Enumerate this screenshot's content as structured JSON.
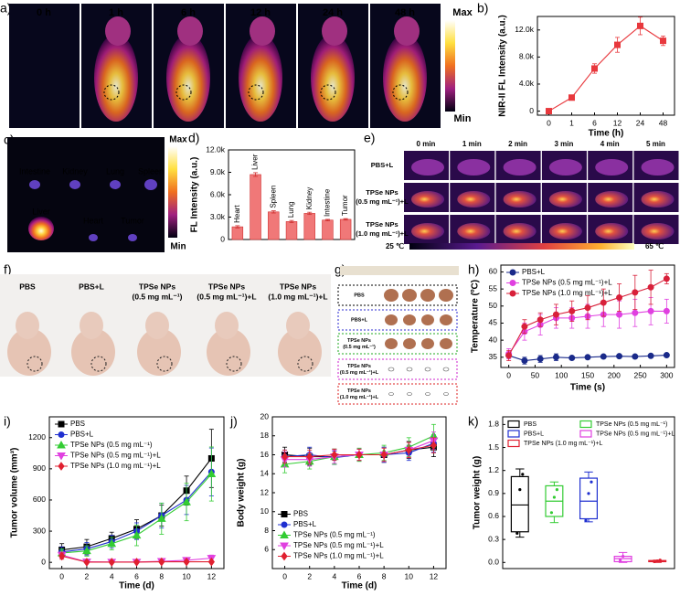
{
  "panels": {
    "a": {
      "label": "a)",
      "times": [
        "0 h",
        "1 h",
        "6 h",
        "12 h",
        "24 h",
        "48 h"
      ],
      "scale": [
        "Max",
        "Min"
      ]
    },
    "c": {
      "label": "c)",
      "organs": [
        "Intestine",
        "Kidney",
        "Lung",
        "Spleen",
        "Liver",
        "Heart",
        "Tumor"
      ],
      "scale": [
        "Max",
        "Min"
      ]
    },
    "e": {
      "label": "e)",
      "times": [
        "0 min",
        "1 min",
        "2 min",
        "3 min",
        "4 min",
        "5 min"
      ],
      "rows": [
        [
          "PBS+L"
        ],
        [
          "TPSe NPs",
          "(0.5 mg mL⁻¹)+L"
        ],
        [
          "TPSe NPs",
          "(1.0 mg mL⁻¹)+L"
        ]
      ],
      "scale": [
        "25 ℃",
        "65 ℃"
      ]
    },
    "f": {
      "label": "f)",
      "groups": [
        {
          "lines": [
            "PBS"
          ],
          "color": "#000000"
        },
        {
          "lines": [
            "PBS+L"
          ],
          "color": "#2a2ad0"
        },
        {
          "lines": [
            "TPSe NPs",
            "(0.5 mg mL⁻¹)"
          ],
          "color": "#22aa22"
        },
        {
          "lines": [
            "TPSe NPs",
            "(0.5 mg mL⁻¹)+L"
          ],
          "color": "#cc22cc"
        },
        {
          "lines": [
            "TPSe NPs",
            "(1.0 mg mL⁻¹)+L"
          ],
          "color": "#dd2222"
        }
      ]
    },
    "g": {
      "label": "g)",
      "rows": [
        {
          "lines": [
            "PBS"
          ],
          "color": "#000000"
        },
        {
          "lines": [
            "PBS+L"
          ],
          "color": "#2a2ad0"
        },
        {
          "lines": [
            "TPSe NPs",
            "(0.5 mg mL⁻¹)"
          ],
          "color": "#22aa22"
        },
        {
          "lines": [
            "TPSe NPs",
            "(0.5 mg mL⁻¹)+L"
          ],
          "color": "#cc22cc"
        },
        {
          "lines": [
            "TPSe NPs",
            "(1.0 mg mL⁻¹)+L"
          ],
          "color": "#dd2222"
        }
      ]
    }
  },
  "chart_data": [
    {
      "label": "b)",
      "type": "line",
      "categories": [
        "0",
        "1",
        "6",
        "12",
        "24",
        "48"
      ],
      "values": [
        0,
        2000,
        6300,
        9800,
        12600,
        10400
      ],
      "errors": [
        100,
        250,
        700,
        1100,
        1300,
        700
      ],
      "color": "#e8383d",
      "marker": "square",
      "ylim": [
        -600,
        14000
      ],
      "yticks": [
        0,
        {
          "value": 4000,
          "label": "4.0k"
        },
        {
          "value": 8000,
          "label": "8.0k"
        },
        {
          "value": 12000,
          "label": "12.0k"
        }
      ],
      "xlabel": "Time (h)",
      "ylabel": "NIR-II FL Intensity (a.u.)"
    },
    {
      "label": "d)",
      "type": "bar",
      "categories": [
        "Heart",
        "Liver",
        "Spleen",
        "Lung",
        "Kidney",
        "Intestine",
        "Tumor"
      ],
      "values": [
        1700,
        8700,
        3700,
        2400,
        3500,
        2600,
        2700
      ],
      "errors": [
        150,
        250,
        150,
        150,
        150,
        100,
        100
      ],
      "color": "#f07878",
      "ylim": [
        0,
        12000
      ],
      "yticks": [
        0,
        {
          "value": 3000,
          "label": "3.0k"
        },
        {
          "value": 6000,
          "label": "6.0k"
        },
        {
          "value": 9000,
          "label": "9.0k"
        },
        {
          "value": 12000,
          "label": "12.0k"
        }
      ],
      "ylabel": "FL Intensity (a.u.)"
    },
    {
      "label": "h)",
      "type": "line",
      "x": [
        0,
        30,
        60,
        90,
        120,
        150,
        180,
        210,
        240,
        270,
        300
      ],
      "xlim": [
        -15,
        315
      ],
      "xticks": [
        0,
        50,
        100,
        150,
        200,
        250,
        300
      ],
      "ylim": [
        32,
        62
      ],
      "yticks": [
        35,
        40,
        45,
        50,
        55,
        60
      ],
      "legend": "upper left",
      "xlabel": "Time (s)",
      "ylabel": "Temperature (ºC)",
      "series": [
        {
          "name": "PBS+L",
          "color": "#1a2a8a",
          "marker": "circle",
          "values": [
            35.5,
            34,
            34.5,
            35,
            34.8,
            35,
            35.2,
            35.3,
            35.2,
            35.4,
            35.6
          ],
          "errors": [
            0.5,
            1,
            1,
            1,
            0.3,
            0.3,
            0.3,
            0.3,
            0.3,
            0.3,
            0.3
          ]
        },
        {
          "name": "TPSe NPs (0.5 mg mL⁻¹)+L",
          "color": "#e040e0",
          "marker": "circle",
          "values": [
            36,
            42.5,
            44.5,
            46.5,
            46.5,
            47,
            47.5,
            47.5,
            48,
            48.5,
            48.5
          ],
          "errors": [
            1.5,
            2.5,
            3,
            3,
            3,
            3.5,
            3.5,
            4,
            4,
            4,
            3.5
          ]
        },
        {
          "name": "TPSe NPs (1.0 mg mL⁻¹)+L",
          "color": "#d8203a",
          "marker": "circle",
          "values": [
            35.5,
            44,
            46,
            47.5,
            48.5,
            49.5,
            51,
            52.5,
            54,
            55.5,
            58
          ],
          "errors": [
            1.5,
            2,
            2,
            3,
            3,
            3.5,
            4,
            4,
            5,
            5,
            1.5
          ]
        }
      ]
    },
    {
      "label": "i)",
      "type": "line",
      "x": [
        0,
        2,
        4,
        6,
        8,
        10,
        12
      ],
      "xlim": [
        -1,
        13
      ],
      "xticks": [
        0,
        2,
        4,
        6,
        8,
        10,
        12
      ],
      "ylim": [
        -60,
        1400
      ],
      "yticks": [
        0,
        300,
        600,
        900,
        1200
      ],
      "legend": "upper left",
      "xlabel": "Time (d)",
      "ylabel": "Tumor volume (mm³)",
      "series": [
        {
          "name": "PBS",
          "color": "#000000",
          "marker": "square",
          "values": [
            120,
            150,
            230,
            320,
            450,
            690,
            1000
          ],
          "errors": [
            60,
            70,
            60,
            90,
            100,
            140,
            280
          ]
        },
        {
          "name": "PBS+L",
          "color": "#2030d0",
          "marker": "circle",
          "values": [
            100,
            130,
            200,
            300,
            450,
            600,
            870
          ],
          "errors": [
            50,
            60,
            60,
            80,
            120,
            140,
            230
          ]
        },
        {
          "name": "TPSe NPs (0.5 mg mL⁻¹)",
          "color": "#33cc33",
          "marker": "triangle",
          "values": [
            90,
            110,
            180,
            260,
            420,
            580,
            850
          ],
          "errors": [
            40,
            50,
            60,
            100,
            150,
            180,
            260
          ]
        },
        {
          "name": "TPSe NPs (0.5 mg mL⁻¹)+L",
          "color": "#e040e0",
          "marker": "triangle-down",
          "values": [
            70,
            5,
            3,
            3,
            10,
            20,
            40
          ],
          "errors": [
            30,
            10,
            5,
            5,
            10,
            15,
            30
          ]
        },
        {
          "name": "TPSe NPs (1.0 mg mL⁻¹)+L",
          "color": "#e02030",
          "marker": "diamond",
          "values": [
            60,
            2,
            2,
            2,
            5,
            5,
            5
          ],
          "errors": [
            30,
            5,
            3,
            3,
            5,
            5,
            5
          ]
        }
      ]
    },
    {
      "label": "j)",
      "type": "line",
      "x": [
        0,
        2,
        4,
        6,
        8,
        10,
        12
      ],
      "xlim": [
        -1,
        13
      ],
      "xticks": [
        0,
        2,
        4,
        6,
        8,
        10,
        12
      ],
      "ylim": [
        4,
        20
      ],
      "yticks": [
        6,
        8,
        10,
        12,
        14,
        16,
        18,
        20
      ],
      "legend": "lower left",
      "xlabel": "Time (d)",
      "ylabel": "Body weight (g)",
      "series": [
        {
          "name": "PBS",
          "color": "#000000",
          "marker": "square",
          "values": [
            16,
            15.8,
            15.8,
            16,
            16,
            16.5,
            16.8
          ],
          "errors": [
            0.8,
            0.9,
            0.8,
            0.6,
            0.8,
            0.9,
            1.0
          ]
        },
        {
          "name": "PBS+L",
          "color": "#2030d0",
          "marker": "circle",
          "values": [
            15.8,
            16,
            15.7,
            16,
            16,
            16.2,
            17.2
          ],
          "errors": [
            0.7,
            0.8,
            0.7,
            0.6,
            0.8,
            0.8,
            0.9
          ]
        },
        {
          "name": "TPSe NPs (0.5 mg mL⁻¹)",
          "color": "#33cc33",
          "marker": "triangle",
          "values": [
            15,
            15.3,
            15.8,
            16,
            16.2,
            16.8,
            18
          ],
          "errors": [
            0.9,
            0.8,
            0.8,
            0.7,
            0.8,
            1.0,
            1.2
          ]
        },
        {
          "name": "TPSe NPs (0.5 mg mL⁻¹)+L",
          "color": "#e040e0",
          "marker": "triangle-down",
          "values": [
            15.5,
            15.5,
            15.8,
            16,
            16,
            16.5,
            17.5
          ],
          "errors": [
            0.8,
            0.7,
            0.7,
            0.6,
            0.7,
            0.8,
            0.9
          ]
        },
        {
          "name": "TPSe NPs (1.0 mg mL⁻¹)+L",
          "color": "#e02030",
          "marker": "diamond",
          "values": [
            15.8,
            15.8,
            16,
            16,
            16,
            16.5,
            17
          ],
          "errors": [
            0.7,
            0.7,
            0.6,
            0.6,
            0.7,
            0.8,
            0.8
          ]
        }
      ]
    },
    {
      "label": "k)",
      "type": "box",
      "ylim": [
        -0.08,
        1.9
      ],
      "yticks": [
        {
          "value": 0,
          "label": "0.0"
        },
        0.3,
        0.6,
        0.9,
        1.2,
        1.5,
        1.8
      ],
      "legend": "upper center",
      "ylabel": "Tumor weight (g)",
      "series": [
        {
          "name": "PBS",
          "color": "#000000",
          "min": 0.33,
          "q1": 0.4,
          "median": 0.75,
          "q3": 1.12,
          "max": 1.22,
          "points": [
            0.38,
            0.95,
            1.15
          ]
        },
        {
          "name": "TPSe NPs (0.5 mg mL⁻¹)",
          "color": "#33cc33",
          "min": 0.52,
          "q1": 0.6,
          "median": 0.8,
          "q3": 1.0,
          "max": 1.05,
          "points": [
            0.65,
            0.85,
            0.95
          ]
        },
        {
          "name": "PBS+L",
          "color": "#2030d0",
          "min": 0.53,
          "q1": 0.57,
          "median": 0.8,
          "q3": 1.1,
          "max": 1.18,
          "points": [
            0.55,
            0.9,
            1.05
          ]
        },
        {
          "name": "TPSe NPs (0.5 mg mL⁻¹)+L",
          "color": "#e040e0",
          "min": 0,
          "q1": 0.01,
          "median": 0.05,
          "q3": 0.08,
          "max": 0.13,
          "points": [
            0.03,
            0.08
          ]
        },
        {
          "name": "TPSe NPs (1.0 mg mL⁻¹)+L",
          "color": "#e02030",
          "min": 0,
          "q1": 0.01,
          "median": 0.02,
          "q3": 0.025,
          "max": 0.03,
          "points": [
            0.01,
            0.02,
            0.03
          ]
        }
      ]
    }
  ]
}
